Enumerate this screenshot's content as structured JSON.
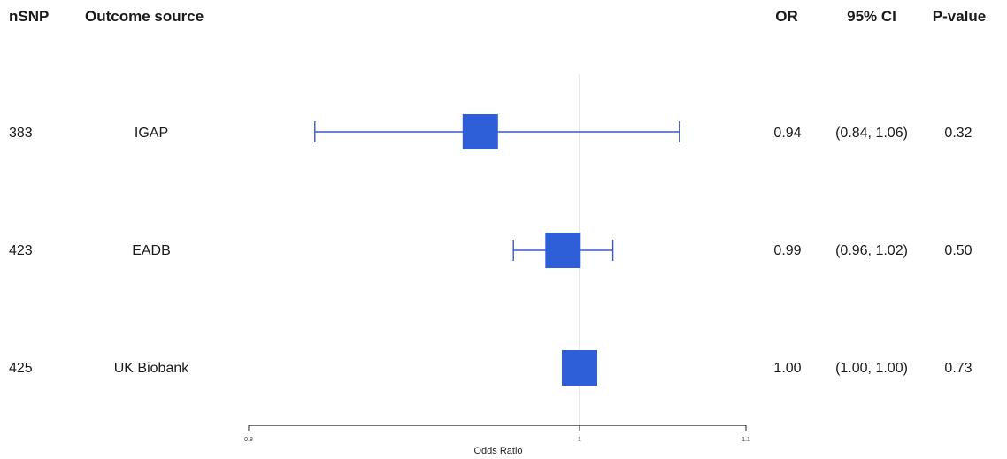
{
  "headers": {
    "nsnp": "nSNP",
    "outcome": "Outcome source",
    "or": "OR",
    "ci": "95% CI",
    "pvalue": "P-value"
  },
  "rows": [
    {
      "nsnp": "383",
      "outcome": "IGAP",
      "or": "0.94",
      "ci": "(0.84, 1.06)",
      "pvalue": "0.32"
    },
    {
      "nsnp": "423",
      "outcome": "EADB",
      "or": "0.99",
      "ci": "(0.96, 1.02)",
      "pvalue": "0.50"
    },
    {
      "nsnp": "425",
      "outcome": "UK Biobank",
      "or": "1.00",
      "ci": "(1.00, 1.00)",
      "pvalue": "0.73"
    }
  ],
  "chart_data": {
    "type": "forest",
    "xlabel": "Odds Ratio",
    "xlim": [
      0.8,
      1.1
    ],
    "ticks": [
      0.8,
      1,
      1.1
    ],
    "tick_labels": [
      "0.8",
      "1",
      "1.1"
    ],
    "reference_line": 1,
    "points": [
      {
        "label": "IGAP",
        "or": 0.94,
        "lower": 0.84,
        "upper": 1.06
      },
      {
        "label": "EADB",
        "or": 0.99,
        "lower": 0.96,
        "upper": 1.02
      },
      {
        "label": "UK Biobank",
        "or": 1.0,
        "lower": 1.0,
        "upper": 1.0
      }
    ],
    "colors": {
      "marker": "#2f5fd8",
      "ci_line": "#3b58c4",
      "ref_line": "#cfcfcf",
      "axis": "#222222"
    }
  }
}
